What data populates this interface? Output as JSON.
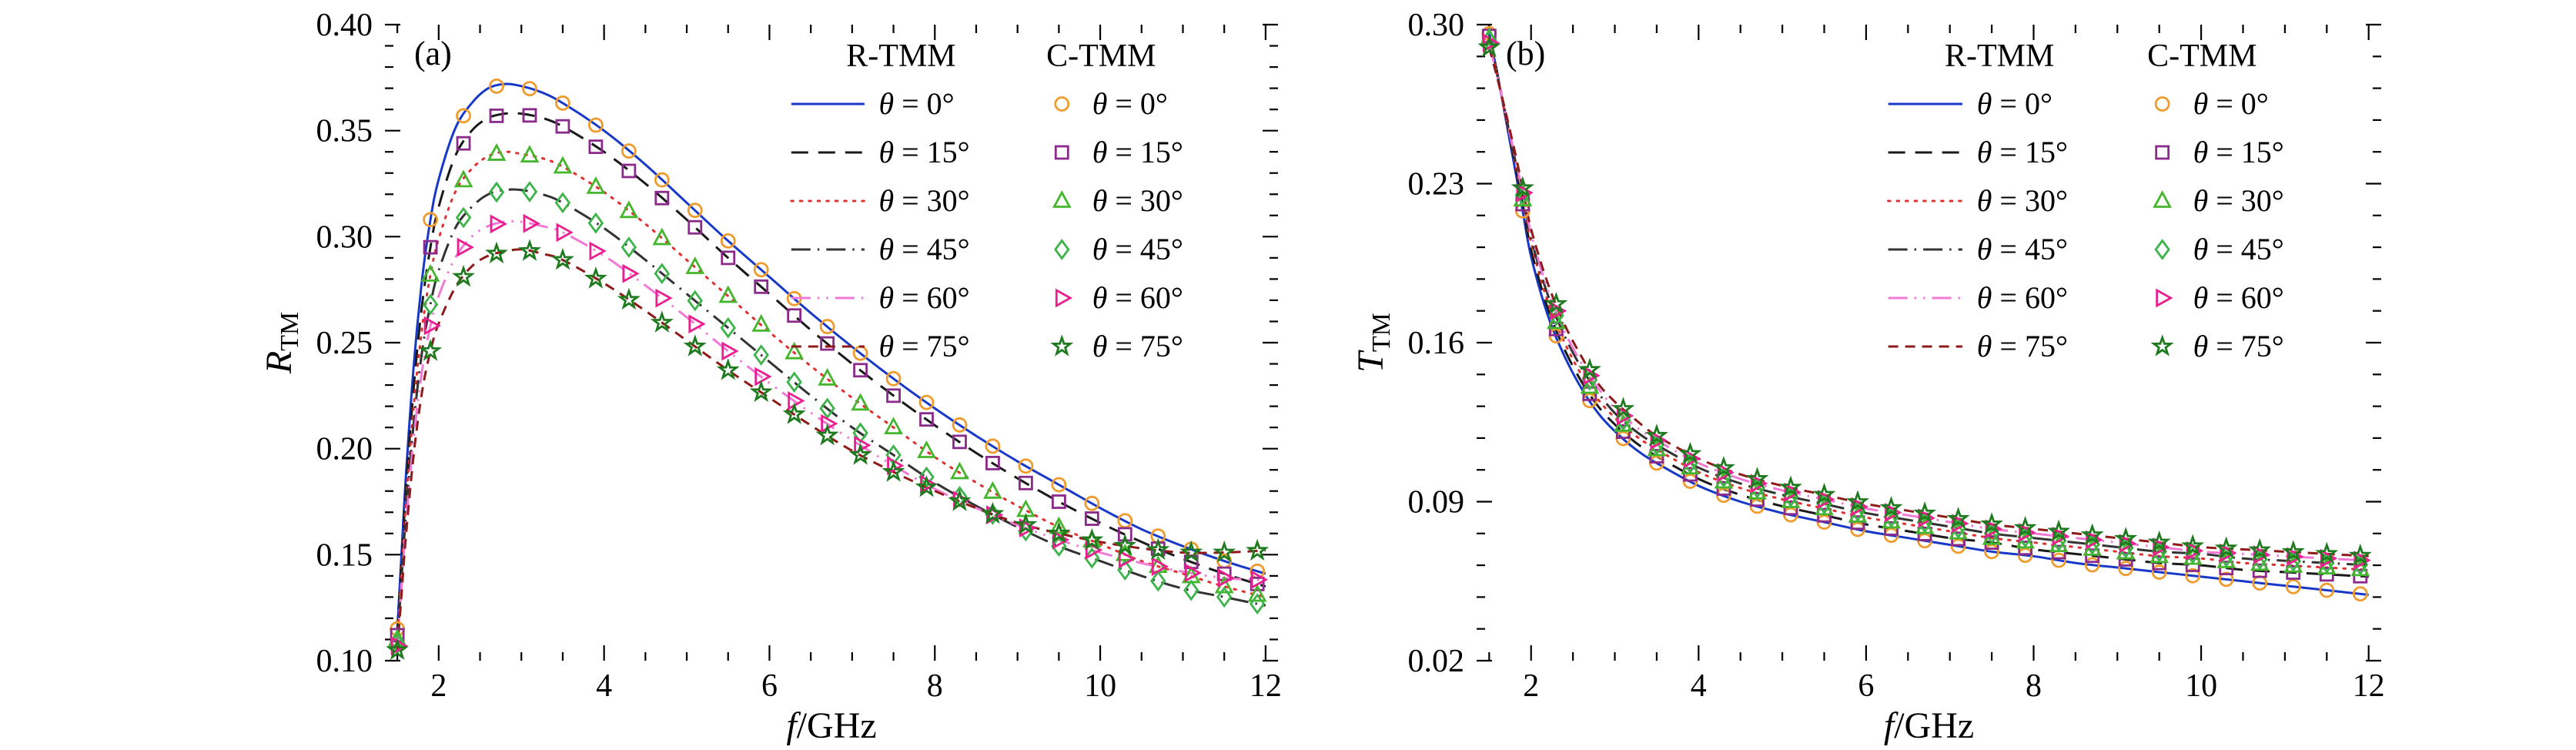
{
  "figure": {
    "background": "#ffffff",
    "spine_color": "#000000"
  },
  "chart_data": [
    {
      "type": "line",
      "tag": "(a)",
      "xlabel_italic": "f",
      "xlabel_rest": "/GHz",
      "ylabel_italic": "R",
      "ylabel_sub": "TM",
      "xlim": [
        1.35,
        12.15
      ],
      "ylim": [
        0.1,
        0.4
      ],
      "xticks": [
        2,
        4,
        6,
        8,
        10,
        12
      ],
      "yticks": [
        0.1,
        0.15,
        0.2,
        0.25,
        0.3,
        0.35,
        0.4
      ],
      "ytick_labels": [
        "0.10",
        "0.15",
        "0.20",
        "0.25",
        "0.30",
        "0.35",
        "0.40"
      ],
      "x_minor_step": 0.5,
      "x_minor_start": 1.5,
      "y_minor_step": 0.01,
      "legend_headers": [
        "R-TMM",
        "C-TMM"
      ],
      "marker_start": 1.5,
      "marker_step": 0.4,
      "x": [
        1.5,
        1.55,
        1.6,
        1.7,
        1.8,
        1.9,
        2.0,
        2.2,
        2.4,
        2.6,
        2.8,
        3.0,
        3.25,
        3.5,
        4.0,
        4.5,
        5.0,
        5.5,
        6.0,
        6.5,
        7.0,
        7.5,
        8.0,
        8.5,
        9.0,
        9.5,
        10.0,
        10.5,
        11.0,
        11.5,
        12.0
      ],
      "series": [
        {
          "label": "θ = 0°",
          "line_color": "#1838c8",
          "dash": "solid",
          "marker": "circle",
          "marker_color": "#ef9b2d",
          "values": [
            0.115,
            0.15,
            0.185,
            0.24,
            0.28,
            0.308,
            0.327,
            0.351,
            0.363,
            0.37,
            0.372,
            0.371,
            0.368,
            0.363,
            0.35,
            0.334,
            0.316,
            0.298,
            0.281,
            0.264,
            0.248,
            0.233,
            0.219,
            0.206,
            0.194,
            0.183,
            0.172,
            0.162,
            0.154,
            0.147,
            0.141
          ]
        },
        {
          "label": "θ = 15°",
          "line_color": "#1a1a1a",
          "dash": "dashed",
          "marker": "square",
          "marker_color": "#8a2a8a",
          "values": [
            0.112,
            0.145,
            0.178,
            0.23,
            0.268,
            0.295,
            0.314,
            0.338,
            0.35,
            0.356,
            0.358,
            0.358,
            0.356,
            0.352,
            0.34,
            0.325,
            0.308,
            0.29,
            0.273,
            0.256,
            0.24,
            0.225,
            0.211,
            0.198,
            0.186,
            0.175,
            0.165,
            0.156,
            0.148,
            0.141,
            0.135
          ]
        },
        {
          "label": "θ = 30°",
          "line_color": "#e03030",
          "dash": "dotted",
          "marker": "triangle-up",
          "marker_color": "#44b62c",
          "values": [
            0.11,
            0.141,
            0.172,
            0.221,
            0.257,
            0.282,
            0.299,
            0.321,
            0.332,
            0.338,
            0.34,
            0.339,
            0.337,
            0.333,
            0.321,
            0.306,
            0.289,
            0.272,
            0.255,
            0.239,
            0.224,
            0.21,
            0.196,
            0.184,
            0.173,
            0.163,
            0.155,
            0.147,
            0.141,
            0.135,
            0.13
          ]
        },
        {
          "label": "θ = 45°",
          "line_color": "#333333",
          "dash": "dashdot",
          "marker": "diamond",
          "marker_color": "#3cb44a",
          "values": [
            0.108,
            0.138,
            0.167,
            0.213,
            0.246,
            0.268,
            0.284,
            0.304,
            0.314,
            0.32,
            0.322,
            0.322,
            0.32,
            0.316,
            0.304,
            0.289,
            0.273,
            0.257,
            0.241,
            0.225,
            0.21,
            0.197,
            0.184,
            0.173,
            0.163,
            0.154,
            0.147,
            0.14,
            0.134,
            0.13,
            0.126
          ]
        },
        {
          "label": "θ = 60°",
          "line_color": "#f07ad6",
          "dash": "dashdotdot",
          "marker": "triangle-right",
          "marker_color": "#ea1f8f",
          "values": [
            0.107,
            0.135,
            0.162,
            0.206,
            0.237,
            0.258,
            0.272,
            0.29,
            0.3,
            0.305,
            0.307,
            0.307,
            0.305,
            0.302,
            0.291,
            0.277,
            0.262,
            0.246,
            0.231,
            0.217,
            0.204,
            0.192,
            0.181,
            0.172,
            0.164,
            0.157,
            0.151,
            0.146,
            0.142,
            0.139,
            0.138
          ]
        },
        {
          "label": "θ = 75°",
          "line_color": "#8f1a1a",
          "dash": "shortdash",
          "marker": "star",
          "marker_color": "#1e7a1e",
          "values": [
            0.105,
            0.131,
            0.157,
            0.198,
            0.227,
            0.246,
            0.259,
            0.276,
            0.286,
            0.291,
            0.293,
            0.294,
            0.292,
            0.289,
            0.278,
            0.265,
            0.251,
            0.237,
            0.224,
            0.211,
            0.199,
            0.189,
            0.18,
            0.172,
            0.165,
            0.16,
            0.156,
            0.153,
            0.151,
            0.151,
            0.152
          ]
        }
      ]
    },
    {
      "type": "line",
      "tag": "(b)",
      "xlabel_italic": "f",
      "xlabel_rest": "/GHz",
      "ylabel_italic": "T",
      "ylabel_sub": "TM",
      "xlim": [
        1.35,
        12.15
      ],
      "ylim": [
        0.02,
        0.3
      ],
      "xticks": [
        2,
        4,
        6,
        8,
        10,
        12
      ],
      "yticks": [
        0.02,
        0.09,
        0.16,
        0.23,
        0.3
      ],
      "ytick_labels": [
        "0.02",
        "0.09",
        "0.16",
        "0.23",
        "0.30"
      ],
      "x_minor_step": 0.5,
      "x_minor_start": 1.5,
      "y_minor_step": 0.014,
      "legend_headers": [
        "R-TMM",
        "C-TMM"
      ],
      "marker_start": 1.5,
      "marker_step": 0.4,
      "x": [
        1.5,
        1.55,
        1.6,
        1.7,
        1.8,
        1.9,
        2.0,
        2.2,
        2.4,
        2.6,
        2.8,
        3.0,
        3.25,
        3.5,
        4.0,
        4.5,
        5.0,
        5.5,
        6.0,
        6.5,
        7.0,
        7.5,
        8.0,
        8.5,
        9.0,
        9.5,
        10.0,
        10.5,
        11.0,
        11.5,
        12.0
      ],
      "series": [
        {
          "label": "θ = 0°",
          "line_color": "#1838c8",
          "dash": "solid",
          "marker": "circle",
          "marker_color": "#ef9b2d",
          "values": [
            0.296,
            0.287,
            0.278,
            0.258,
            0.238,
            0.218,
            0.198,
            0.172,
            0.154,
            0.14,
            0.129,
            0.121,
            0.113,
            0.107,
            0.097,
            0.09,
            0.085,
            0.081,
            0.077,
            0.074,
            0.071,
            0.068,
            0.066,
            0.063,
            0.061,
            0.059,
            0.057,
            0.055,
            0.053,
            0.051,
            0.049
          ]
        },
        {
          "label": "θ = 15°",
          "line_color": "#1a1a1a",
          "dash": "dashed",
          "marker": "square",
          "marker_color": "#8a2a8a",
          "values": [
            0.295,
            0.286,
            0.278,
            0.259,
            0.24,
            0.221,
            0.201,
            0.175,
            0.157,
            0.143,
            0.132,
            0.124,
            0.116,
            0.11,
            0.1,
            0.093,
            0.088,
            0.084,
            0.08,
            0.077,
            0.074,
            0.072,
            0.069,
            0.067,
            0.065,
            0.063,
            0.062,
            0.06,
            0.059,
            0.058,
            0.057
          ]
        },
        {
          "label": "θ = 30°",
          "line_color": "#e03030",
          "dash": "dotted",
          "marker": "triangle-up",
          "marker_color": "#44b62c",
          "values": [
            0.294,
            0.286,
            0.277,
            0.259,
            0.241,
            0.223,
            0.204,
            0.178,
            0.16,
            0.146,
            0.135,
            0.127,
            0.119,
            0.113,
            0.103,
            0.096,
            0.091,
            0.087,
            0.083,
            0.08,
            0.077,
            0.074,
            0.072,
            0.07,
            0.068,
            0.066,
            0.065,
            0.063,
            0.062,
            0.061,
            0.06
          ]
        },
        {
          "label": "θ = 45°",
          "line_color": "#333333",
          "dash": "dashdot",
          "marker": "diamond",
          "marker_color": "#3cb44a",
          "values": [
            0.293,
            0.285,
            0.277,
            0.26,
            0.242,
            0.225,
            0.206,
            0.181,
            0.163,
            0.149,
            0.138,
            0.129,
            0.121,
            0.115,
            0.105,
            0.098,
            0.093,
            0.089,
            0.085,
            0.082,
            0.079,
            0.076,
            0.074,
            0.072,
            0.07,
            0.068,
            0.067,
            0.065,
            0.064,
            0.063,
            0.062
          ]
        },
        {
          "label": "θ = 60°",
          "line_color": "#f07ad6",
          "dash": "dashdotdot",
          "marker": "triangle-right",
          "marker_color": "#ea1f8f",
          "values": [
            0.292,
            0.284,
            0.277,
            0.26,
            0.243,
            0.226,
            0.208,
            0.183,
            0.165,
            0.151,
            0.14,
            0.131,
            0.123,
            0.117,
            0.107,
            0.1,
            0.095,
            0.091,
            0.087,
            0.084,
            0.081,
            0.078,
            0.076,
            0.074,
            0.072,
            0.07,
            0.068,
            0.067,
            0.066,
            0.065,
            0.064
          ]
        },
        {
          "label": "θ = 75°",
          "line_color": "#8f1a1a",
          "dash": "shortdash",
          "marker": "star",
          "marker_color": "#1e7a1e",
          "values": [
            0.29,
            0.283,
            0.276,
            0.261,
            0.245,
            0.228,
            0.21,
            0.186,
            0.168,
            0.154,
            0.142,
            0.134,
            0.126,
            0.119,
            0.109,
            0.102,
            0.097,
            0.093,
            0.089,
            0.086,
            0.083,
            0.08,
            0.078,
            0.076,
            0.074,
            0.072,
            0.07,
            0.069,
            0.068,
            0.067,
            0.066
          ]
        }
      ]
    }
  ]
}
